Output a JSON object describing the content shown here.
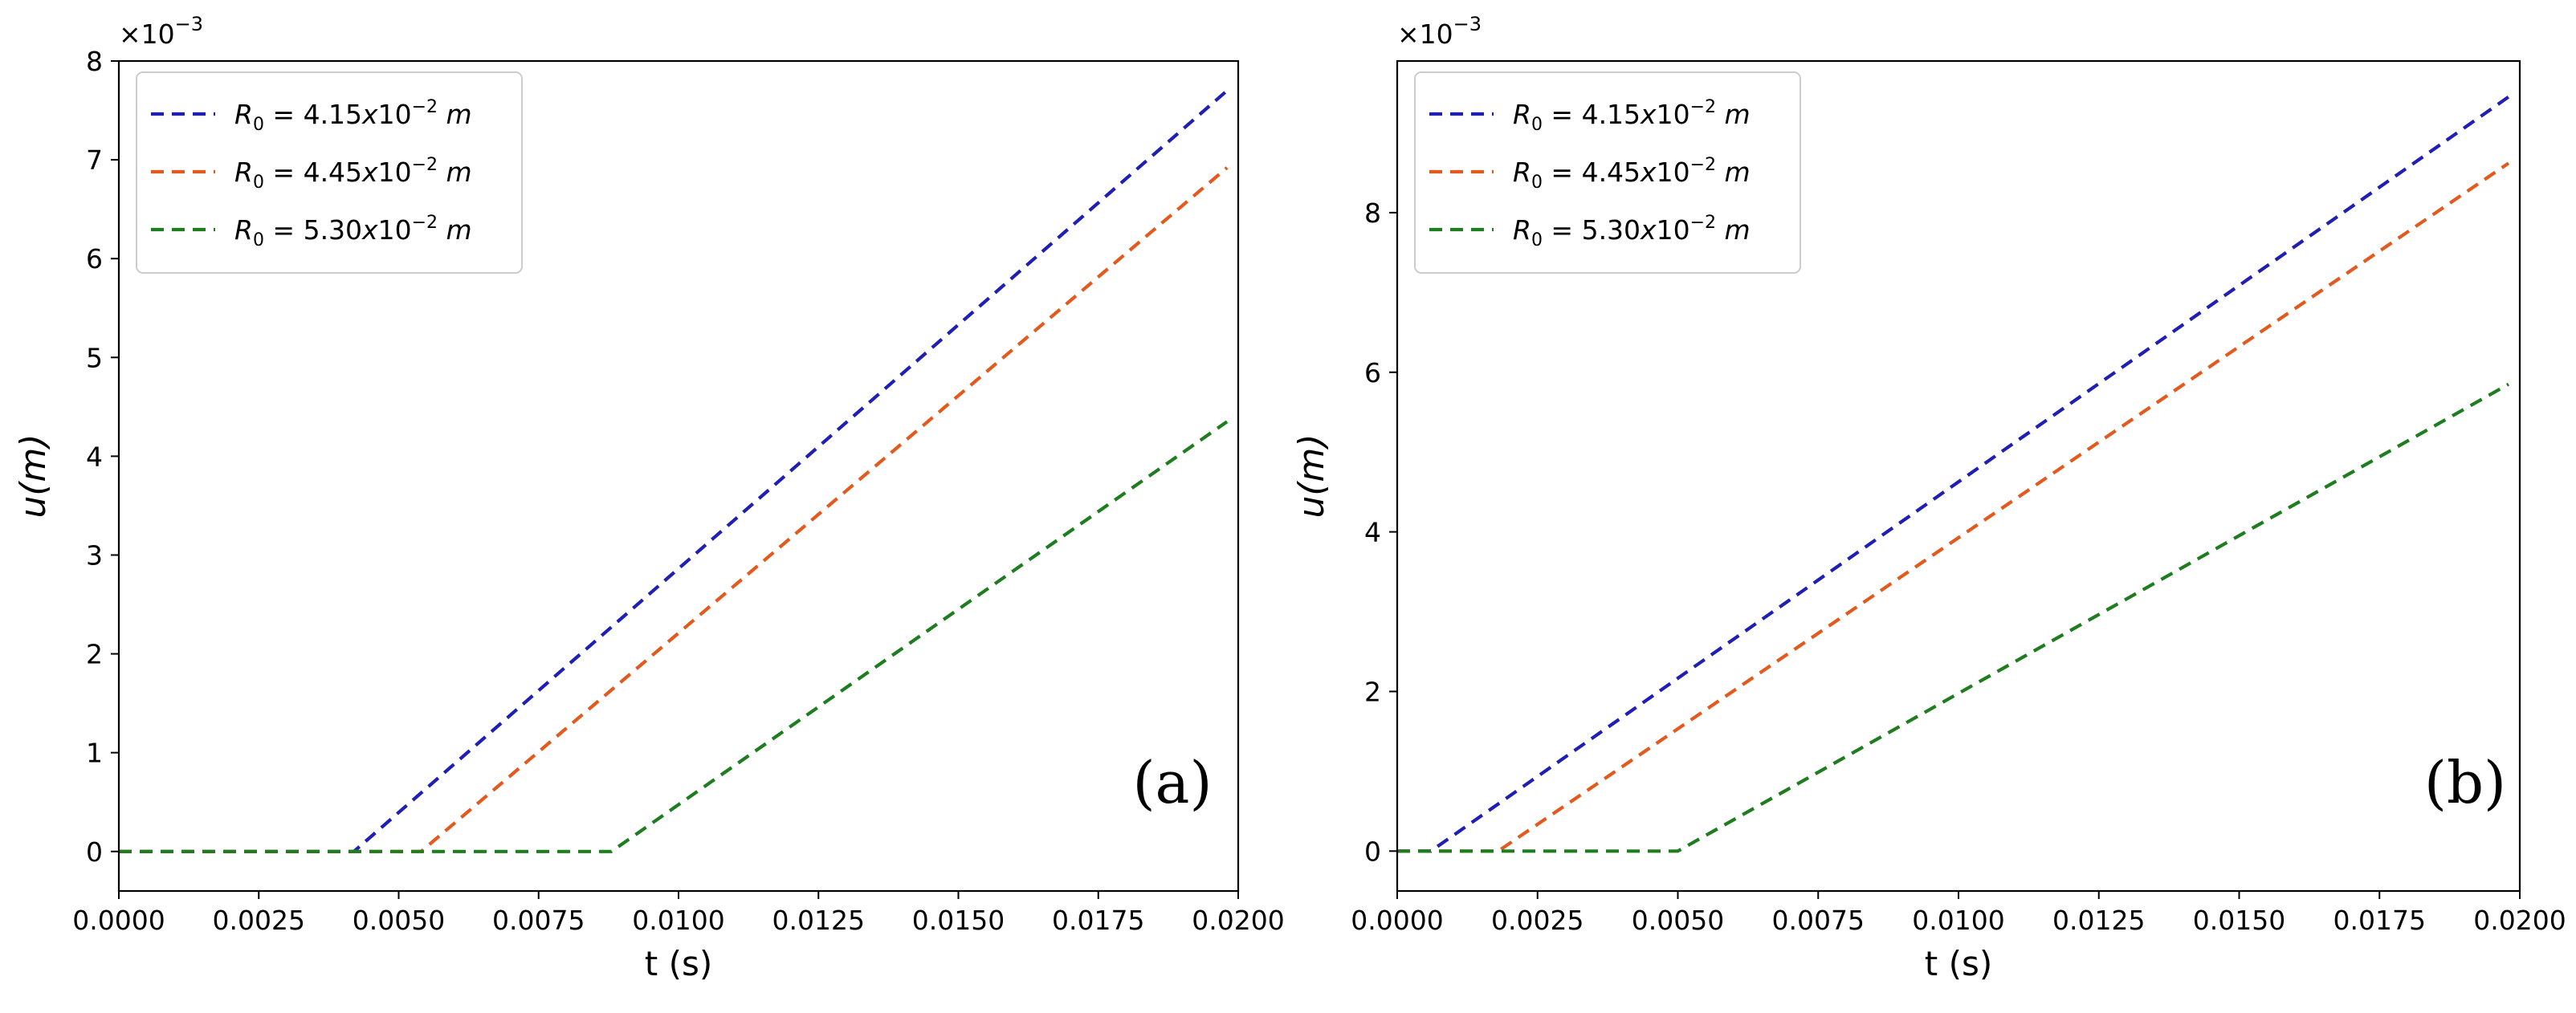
{
  "chart_data": [
    {
      "type": "line",
      "panel_label": "(a)",
      "xlabel": "t (s)",
      "ylabel": "u(m)",
      "y_multiplier": "×10",
      "y_multiplier_exp": "−3",
      "xlim": [
        0.0,
        0.02
      ],
      "ylim": [
        -0.4,
        8.0
      ],
      "x_ticks": [
        0.0,
        0.0025,
        0.005,
        0.0075,
        0.01,
        0.0125,
        0.015,
        0.0175,
        0.02
      ],
      "x_tick_labels": [
        "0.0000",
        "0.0025",
        "0.0050",
        "0.0075",
        "0.0100",
        "0.0125",
        "0.0150",
        "0.0175",
        "0.0200"
      ],
      "y_ticks": [
        0,
        1,
        2,
        3,
        4,
        5,
        6,
        7,
        8
      ],
      "y_tick_labels": [
        "0",
        "1",
        "2",
        "3",
        "4",
        "5",
        "6",
        "7",
        "8"
      ],
      "legend_position": "top-left",
      "series": [
        {
          "name": "R0 = 4.15x10-2 m",
          "legend_base": "R",
          "legend_sub": "0",
          "legend_eq": " = 4.15",
          "legend_x": "x",
          "legend_ten": "10",
          "legend_exp": "−2",
          "legend_unit": "m",
          "color": "#1f1fb4",
          "x": [
            0.0,
            0.0042,
            0.0198
          ],
          "y": [
            0.0,
            0.0,
            7.7
          ]
        },
        {
          "name": "R0 = 4.45x10-2 m",
          "legend_base": "R",
          "legend_sub": "0",
          "legend_eq": " = 4.45",
          "legend_x": "x",
          "legend_ten": "10",
          "legend_exp": "−2",
          "legend_unit": "m",
          "color": "#e35a1e",
          "x": [
            0.0,
            0.0054,
            0.0198
          ],
          "y": [
            0.0,
            0.0,
            6.92
          ]
        },
        {
          "name": "R0 = 5.30x10-2 m",
          "legend_base": "R",
          "legend_sub": "0",
          "legend_eq": " = 5.30",
          "legend_x": "x",
          "legend_ten": "10",
          "legend_exp": "−2",
          "legend_unit": "m",
          "color": "#1e7d1e",
          "x": [
            0.0,
            0.0088,
            0.0198
          ],
          "y": [
            0.0,
            0.0,
            4.35
          ]
        }
      ]
    },
    {
      "type": "line",
      "panel_label": "(b)",
      "xlabel": "t (s)",
      "ylabel": "u(m)",
      "y_multiplier": "×10",
      "y_multiplier_exp": "−3",
      "xlim": [
        0.0,
        0.02
      ],
      "ylim": [
        -0.5,
        9.9
      ],
      "x_ticks": [
        0.0,
        0.0025,
        0.005,
        0.0075,
        0.01,
        0.0125,
        0.015,
        0.0175,
        0.02
      ],
      "x_tick_labels": [
        "0.0000",
        "0.0025",
        "0.0050",
        "0.0075",
        "0.0100",
        "0.0125",
        "0.0150",
        "0.0175",
        "0.0200"
      ],
      "y_ticks": [
        0,
        2,
        4,
        6,
        8
      ],
      "y_tick_labels": [
        "0",
        "2",
        "4",
        "6",
        "8"
      ],
      "legend_position": "top-left",
      "series": [
        {
          "name": "R0 = 4.15x10-2 m",
          "legend_base": "R",
          "legend_sub": "0",
          "legend_eq": " = 4.15",
          "legend_x": "x",
          "legend_ten": "10",
          "legend_exp": "−2",
          "legend_unit": "m",
          "color": "#1f1fb4",
          "x": [
            0.0,
            0.0006,
            0.0198
          ],
          "y": [
            0.0,
            0.0,
            9.45
          ]
        },
        {
          "name": "R0 = 4.45x10-2 m",
          "legend_base": "R",
          "legend_sub": "0",
          "legend_eq": " = 4.45",
          "legend_x": "x",
          "legend_ten": "10",
          "legend_exp": "−2",
          "legend_unit": "m",
          "color": "#e35a1e",
          "x": [
            0.0,
            0.0018,
            0.0198
          ],
          "y": [
            0.0,
            0.0,
            8.62
          ]
        },
        {
          "name": "R0 = 5.30x10-2 m",
          "legend_base": "R",
          "legend_sub": "0",
          "legend_eq": " = 5.30",
          "legend_x": "x",
          "legend_ten": "10",
          "legend_exp": "−2",
          "legend_unit": "m",
          "color": "#1e7d1e",
          "x": [
            0.0,
            0.005,
            0.0198
          ],
          "y": [
            0.0,
            0.0,
            5.85
          ]
        }
      ]
    }
  ]
}
